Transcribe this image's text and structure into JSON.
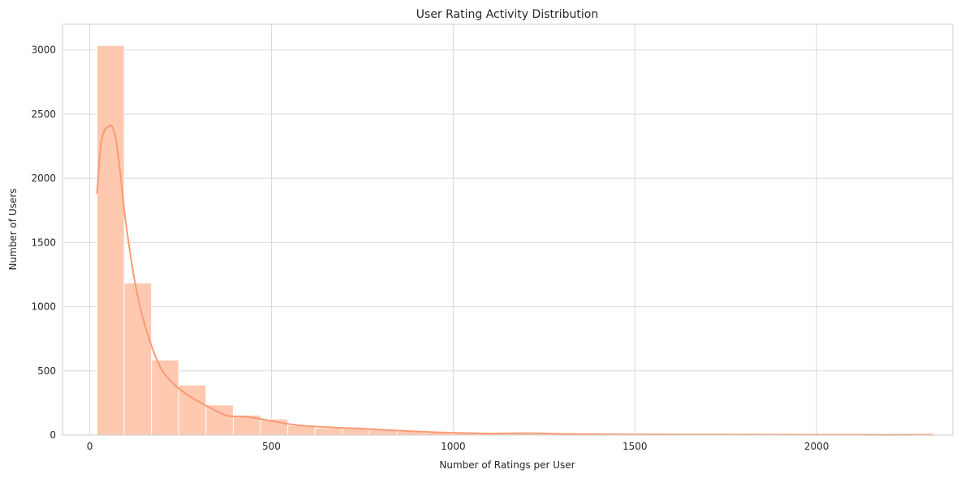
{
  "chart_data": {
    "type": "bar",
    "subtype": "histogram-with-kde",
    "title": "User Rating Activity Distribution",
    "xlabel": "Number of Ratings per User",
    "ylabel": "Number of Users",
    "xlim": [
      -75,
      2375
    ],
    "ylim": [
      0,
      3200
    ],
    "xticks": [
      0,
      500,
      1000,
      1500,
      2000
    ],
    "yticks": [
      0,
      500,
      1000,
      1500,
      2000,
      2500,
      3000
    ],
    "grid": true,
    "bin_edges": [
      20,
      95,
      170,
      245,
      320,
      395,
      470,
      545,
      620,
      695,
      770,
      845,
      920,
      995,
      1070,
      1145,
      1220,
      1295,
      1370,
      1445,
      1520,
      1595,
      1670,
      1745,
      1820,
      1895,
      1970,
      2045,
      2120,
      2195,
      2270,
      2320
    ],
    "values": [
      3035,
      1185,
      585,
      390,
      235,
      155,
      125,
      75,
      55,
      55,
      45,
      30,
      20,
      15,
      10,
      10,
      10,
      5,
      5,
      5,
      5,
      5,
      3,
      3,
      3,
      3,
      2,
      2,
      2,
      2,
      2
    ],
    "kde": {
      "x": [
        20,
        30,
        40,
        50,
        60,
        70,
        80,
        90,
        100,
        120,
        140,
        160,
        180,
        200,
        230,
        260,
        300,
        340,
        380,
        420,
        460,
        500,
        550,
        600,
        650,
        700,
        750,
        800,
        850,
        900,
        950,
        1000,
        1100,
        1200,
        1250,
        1300,
        1400,
        1500,
        1700,
        1900,
        2100,
        2320
      ],
      "y": [
        1880,
        2250,
        2370,
        2400,
        2410,
        2330,
        2140,
        1880,
        1640,
        1260,
        980,
        780,
        620,
        500,
        400,
        330,
        260,
        200,
        150,
        145,
        130,
        110,
        85,
        70,
        62,
        55,
        50,
        42,
        35,
        28,
        22,
        18,
        12,
        14,
        13,
        9,
        6,
        5,
        4,
        3,
        2,
        2
      ]
    },
    "colors": {
      "bar_fill": "#ffc9b0",
      "kde_line": "#fb9a74"
    }
  }
}
